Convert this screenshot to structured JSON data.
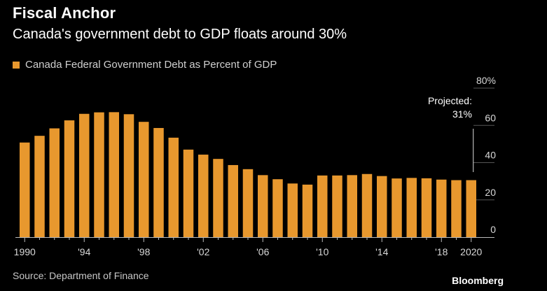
{
  "header": {
    "title": "Fiscal Anchor",
    "subtitle": "Canada's government debt to GDP floats around 30%"
  },
  "footer": {
    "source": "Source: Department of Finance",
    "logo": "Bloomberg"
  },
  "colors": {
    "bar": "#E8982E",
    "background": "#000000",
    "grid": "#555555"
  },
  "chart_data": {
    "type": "bar",
    "title": "Fiscal Anchor",
    "subtitle": "Canada's government debt to GDP floats around 30%",
    "xlabel": "",
    "ylabel": "",
    "ylim": [
      0,
      80
    ],
    "yticks": [
      0,
      20,
      40,
      60,
      80
    ],
    "ytick_labels": [
      "0",
      "20",
      "40",
      "60",
      "80%"
    ],
    "legend": [
      "Canada Federal Government Debt as Percent of GDP"
    ],
    "legend_position": "top-left",
    "categories": [
      1990,
      1991,
      1992,
      1993,
      1994,
      1995,
      1996,
      1997,
      1998,
      1999,
      2000,
      2001,
      2002,
      2003,
      2004,
      2005,
      2006,
      2007,
      2008,
      2009,
      2010,
      2011,
      2012,
      2013,
      2014,
      2015,
      2016,
      2017,
      2018,
      2019,
      2020
    ],
    "xtick_labels": [
      {
        "year": 1990,
        "label": "1990"
      },
      {
        "year": 1994,
        "label": "'94"
      },
      {
        "year": 1998,
        "label": "'98"
      },
      {
        "year": 2002,
        "label": "'02"
      },
      {
        "year": 2006,
        "label": "'06"
      },
      {
        "year": 2010,
        "label": "'10"
      },
      {
        "year": 2014,
        "label": "'14"
      },
      {
        "year": 2018,
        "label": "'18"
      },
      {
        "year": 2020,
        "label": "2020"
      }
    ],
    "series": [
      {
        "name": "Canada Federal Government Debt as Percent of GDP",
        "values": [
          50.8,
          54.4,
          58.4,
          62.7,
          66.2,
          67.0,
          67.1,
          66.0,
          61.9,
          58.6,
          53.4,
          47.0,
          44.3,
          42.0,
          38.7,
          36.5,
          33.3,
          31.1,
          28.8,
          28.2,
          33.1,
          33.1,
          33.3,
          33.9,
          32.8,
          31.5,
          31.8,
          31.6,
          30.9,
          30.6,
          30.6
        ]
      }
    ],
    "annotation": {
      "text_line1": "Projected:",
      "text_line2": "31%",
      "from_year": 2020
    }
  }
}
